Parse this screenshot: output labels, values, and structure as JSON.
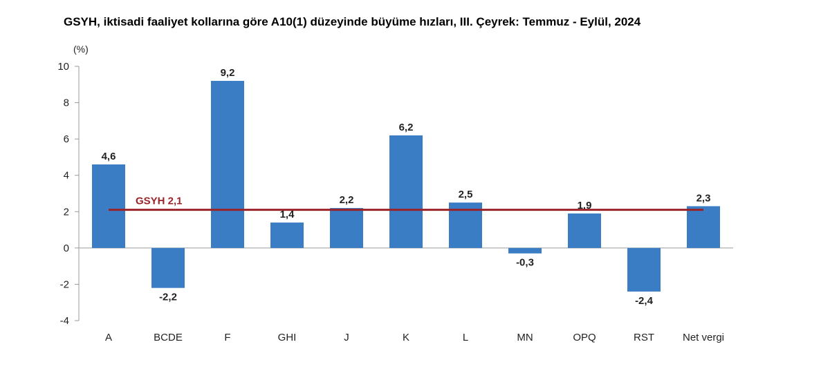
{
  "chart_data": {
    "type": "bar",
    "title": "GSYH, iktisadi faaliyet kollarına göre A10(1) düzeyinde büyüme hızları, III. Çeyrek: Temmuz - Eylül, 2024",
    "ylabel": "(%)",
    "xlabel": "",
    "categories": [
      "A",
      "BCDE",
      "F",
      "GHI",
      "J",
      "K",
      "L",
      "MN",
      "OPQ",
      "RST",
      "Net vergi"
    ],
    "values": [
      4.6,
      -2.2,
      9.2,
      1.4,
      2.2,
      6.2,
      2.5,
      -0.3,
      1.9,
      -2.4,
      2.3
    ],
    "value_labels": [
      "4,6",
      "-2,2",
      "9,2",
      "1,4",
      "2,2",
      "6,2",
      "2,5",
      "-0,3",
      "1,9",
      "-2,4",
      "2,3"
    ],
    "ylim": [
      -4,
      10
    ],
    "yticks": [
      10,
      8,
      6,
      4,
      2,
      0,
      -2,
      -4
    ],
    "grid": false,
    "reference_line": {
      "label": "GSYH 2,1",
      "value": 2.1,
      "color": "#9b2226"
    },
    "colors": {
      "bar": "#3a7dc4",
      "axis": "#9a9a9a"
    }
  }
}
